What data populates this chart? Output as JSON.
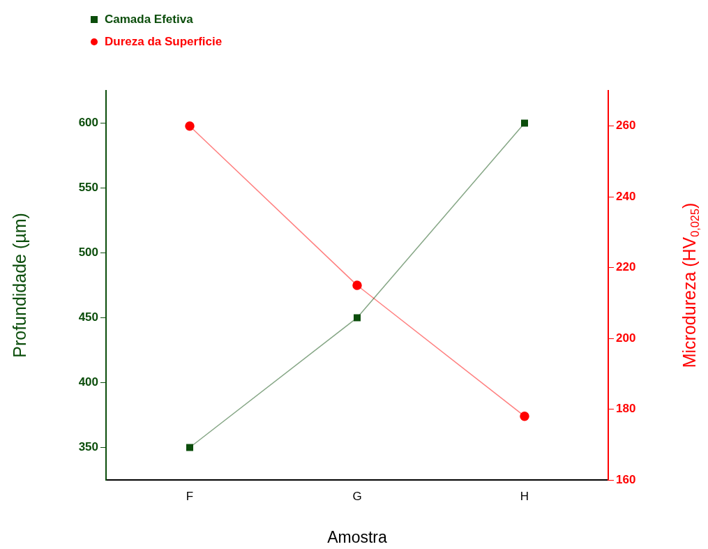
{
  "chart_data": {
    "type": "line",
    "xlabel": "Amostra",
    "ylabel": "Profundidade (µm)",
    "y2label": "Microdureza (HV$_{0,025}$)",
    "categories": [
      "F",
      "G",
      "H"
    ],
    "series": [
      {
        "name": "Camada Efetiva",
        "color": "#0b4d0b",
        "values": [
          350,
          450,
          600
        ],
        "marker": "square"
      },
      {
        "name": "Dureza da Superficie",
        "color": "#ff0000",
        "values": [
          260,
          215,
          178
        ],
        "axis": "y2",
        "marker": "circle"
      }
    ],
    "ylim": [
      325,
      625
    ],
    "yticks": [
      350,
      400,
      450,
      500,
      550,
      600
    ],
    "y2lim": [
      160,
      270
    ],
    "y2ticks": [
      160,
      180,
      200,
      220,
      240,
      260
    ],
    "grid": false,
    "legend": "top left",
    "line_style": "solid"
  }
}
